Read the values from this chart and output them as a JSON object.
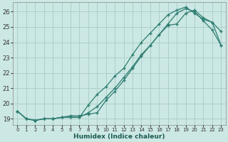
{
  "xlabel": "Humidex (Indice chaleur)",
  "xlim": [
    -0.5,
    23.5
  ],
  "ylim": [
    18.6,
    26.6
  ],
  "xticks": [
    0,
    1,
    2,
    3,
    4,
    5,
    6,
    7,
    8,
    9,
    10,
    11,
    12,
    13,
    14,
    15,
    16,
    17,
    18,
    19,
    20,
    21,
    22,
    23
  ],
  "yticks": [
    19,
    20,
    21,
    22,
    23,
    24,
    25,
    26
  ],
  "background_color": "#cce8e4",
  "grid_color": "#aacfca",
  "line_color": "#2e7d72",
  "line1_x": [
    0,
    1,
    2,
    3,
    4,
    5,
    6,
    7,
    8,
    9,
    10,
    11,
    12,
    13,
    14,
    15,
    16,
    17,
    18,
    19,
    20,
    21,
    22,
    23
  ],
  "line1_y": [
    19.5,
    19.0,
    18.9,
    19.0,
    19.0,
    19.1,
    19.1,
    19.1,
    19.9,
    20.6,
    21.1,
    21.8,
    22.3,
    23.2,
    24.0,
    24.6,
    25.2,
    25.8,
    26.1,
    26.3,
    25.9,
    25.5,
    25.3,
    23.8
  ],
  "line2_x": [
    0,
    1,
    2,
    3,
    4,
    5,
    6,
    7,
    8,
    9,
    10,
    11,
    12,
    13,
    14,
    15,
    16,
    17,
    18,
    19,
    20,
    21,
    22,
    23
  ],
  "line2_y": [
    19.5,
    19.0,
    18.9,
    19.0,
    19.0,
    19.1,
    19.1,
    19.1,
    19.4,
    19.8,
    20.4,
    21.0,
    21.7,
    22.4,
    23.2,
    23.8,
    24.5,
    25.1,
    25.2,
    25.9,
    26.1,
    25.6,
    25.3,
    24.7
  ],
  "line3_x": [
    0,
    1,
    2,
    3,
    4,
    5,
    6,
    7,
    8,
    9,
    10,
    11,
    12,
    13,
    14,
    15,
    16,
    17,
    18,
    19,
    20,
    21,
    22,
    23
  ],
  "line3_y": [
    19.5,
    19.0,
    18.9,
    19.0,
    19.0,
    19.1,
    19.2,
    19.2,
    19.3,
    19.4,
    20.2,
    20.8,
    21.5,
    22.3,
    23.1,
    23.8,
    24.5,
    25.2,
    25.9,
    26.2,
    26.0,
    25.4,
    24.8,
    23.8
  ]
}
